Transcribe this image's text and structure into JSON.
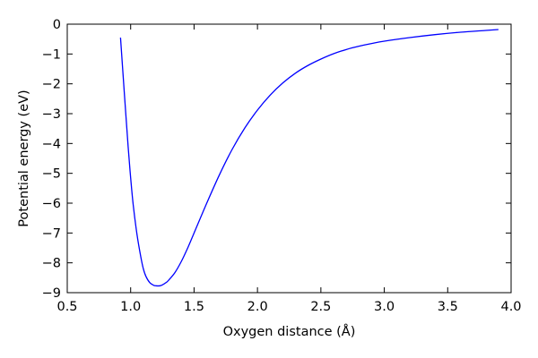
{
  "chart_data": {
    "type": "line",
    "title": "",
    "xlabel": "Oxygen distance (Å)",
    "ylabel": "Potential energy (eV)",
    "xlim": [
      0.5,
      4.0
    ],
    "ylim": [
      -9,
      0
    ],
    "xticks": [
      0.5,
      1.0,
      1.5,
      2.0,
      2.5,
      3.0,
      3.5,
      4.0
    ],
    "yticks": [
      0,
      -1,
      -2,
      -3,
      -4,
      -5,
      -6,
      -7,
      -8,
      -9
    ],
    "xtick_labels": [
      "0.5",
      "1.0",
      "1.5",
      "2.0",
      "2.5",
      "3.0",
      "3.5",
      "4.0"
    ],
    "ytick_labels": [
      "0",
      "−1",
      "−2",
      "−3",
      "−4",
      "−5",
      "−6",
      "−7",
      "−8",
      "−9"
    ],
    "grid": false,
    "legend": "none",
    "series": [
      {
        "color": "#0000ff",
        "x": [
          0.92,
          0.95,
          0.98,
          1.0,
          1.02,
          1.05,
          1.08,
          1.1,
          1.12,
          1.15,
          1.18,
          1.2,
          1.23,
          1.25,
          1.28,
          1.3,
          1.35,
          1.4,
          1.45,
          1.5,
          1.6,
          1.7,
          1.8,
          1.9,
          2.0,
          2.1,
          2.2,
          2.3,
          2.4,
          2.5,
          2.6,
          2.7,
          2.8,
          2.9,
          3.0,
          3.2,
          3.4,
          3.6,
          3.8,
          3.9
        ],
        "y": [
          -0.45,
          -2.3,
          -4.1,
          -5.15,
          -6.05,
          -7.05,
          -7.8,
          -8.2,
          -8.45,
          -8.66,
          -8.75,
          -8.77,
          -8.77,
          -8.74,
          -8.66,
          -8.58,
          -8.32,
          -7.95,
          -7.5,
          -7.0,
          -6.0,
          -5.05,
          -4.2,
          -3.48,
          -2.88,
          -2.38,
          -1.97,
          -1.64,
          -1.38,
          -1.17,
          -0.99,
          -0.85,
          -0.74,
          -0.65,
          -0.57,
          -0.45,
          -0.35,
          -0.27,
          -0.21,
          -0.18
        ]
      }
    ]
  }
}
